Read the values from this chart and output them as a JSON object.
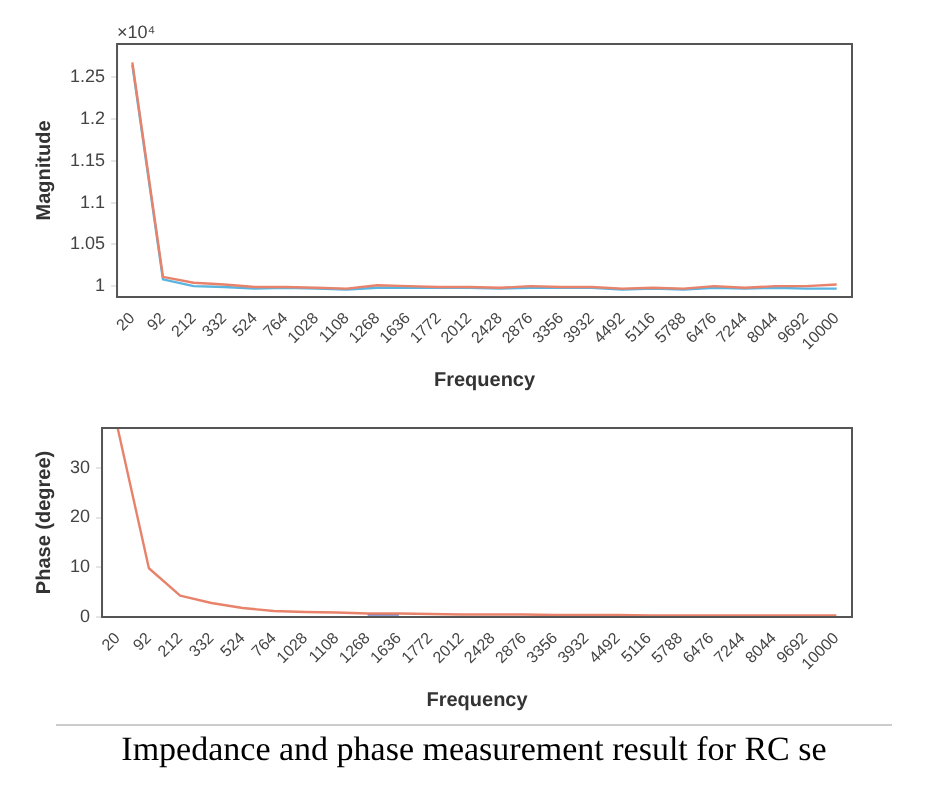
{
  "chart_data": [
    {
      "type": "line",
      "xlabel": "Frequency",
      "ylabel": "Magnitude",
      "annotations": [
        "×10⁴"
      ],
      "categories": [
        "20",
        "92",
        "212",
        "332",
        "524",
        "764",
        "1028",
        "1108",
        "1268",
        "1636",
        "1772",
        "2012",
        "2428",
        "2876",
        "3356",
        "3932",
        "4492",
        "5116",
        "5788",
        "6476",
        "7244",
        "8044",
        "9692",
        "10000"
      ],
      "ylim": [
        0.987,
        1.29
      ],
      "yticks": [
        1,
        1.05,
        1.1,
        1.15,
        1.2,
        1.25
      ],
      "series": [
        {
          "color": "#e8826a",
          "values": [
            1.268,
            1.011,
            1.004,
            1.002,
            0.999,
            0.999,
            0.998,
            0.997,
            1.001,
            1.0,
            0.999,
            0.999,
            0.998,
            1.0,
            0.999,
            0.999,
            0.997,
            0.998,
            0.997,
            1.0,
            0.998,
            1.0,
            1.0,
            1.002
          ]
        },
        {
          "color": "#5ab4e0",
          "values": [
            1.265,
            1.008,
            1.0,
            0.999,
            0.997,
            0.998,
            0.997,
            0.996,
            0.998,
            0.998,
            0.998,
            0.998,
            0.997,
            0.998,
            0.998,
            0.998,
            0.996,
            0.997,
            0.996,
            0.998,
            0.997,
            0.998,
            0.997,
            0.997
          ]
        }
      ]
    },
    {
      "type": "line",
      "xlabel": "Frequency",
      "ylabel": "Phase (degree)",
      "annotations": [
        "Impedance and phase measurement result for RC se"
      ],
      "categories": [
        "20",
        "92",
        "212",
        "332",
        "524",
        "764",
        "1028",
        "1108",
        "1268",
        "1636",
        "1772",
        "2012",
        "2428",
        "2876",
        "3356",
        "3932",
        "4492",
        "5116",
        "5788",
        "6476",
        "7244",
        "8044",
        "9692",
        "10000"
      ],
      "ylim": [
        0,
        38
      ],
      "yticks": [
        0,
        10,
        20,
        30
      ],
      "series": [
        {
          "color": "#e8826a",
          "values": [
            38,
            9.8,
            4.3,
            2.8,
            1.8,
            1.2,
            1.0,
            0.9,
            0.7,
            0.7,
            0.6,
            0.5,
            0.5,
            0.5,
            0.4,
            0.4,
            0.4,
            0.3,
            0.3,
            0.3,
            0.3,
            0.3,
            0.3,
            0.3
          ]
        },
        {
          "color": "#5a6fc0",
          "values": [
            null,
            null,
            null,
            null,
            null,
            null,
            null,
            null,
            0.5,
            0.5,
            null,
            null,
            null,
            null,
            null,
            null,
            null,
            null,
            null,
            null,
            null,
            null,
            null,
            null
          ]
        }
      ]
    }
  ]
}
